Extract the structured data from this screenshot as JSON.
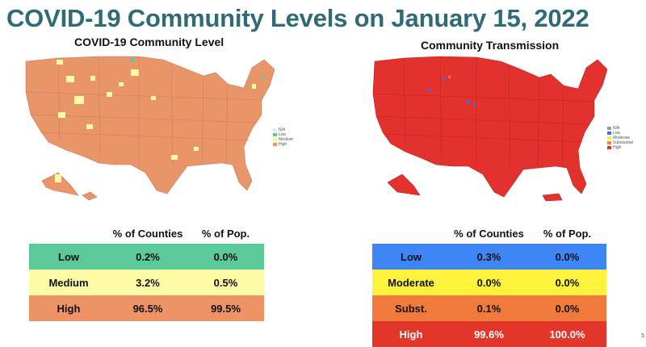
{
  "title": "COVID-19 Community Levels on January 15, 2022",
  "left_panel": {
    "subtitle": "COVID-19 Community Level",
    "legend": [
      {
        "label": "N/A",
        "color": "#e8e8e8"
      },
      {
        "label": "Low",
        "color": "#5cc893"
      },
      {
        "label": "Medium",
        "color": "#f5f59a"
      },
      {
        "label": "High",
        "color": "#e8956a"
      }
    ],
    "table": {
      "headers": [
        "",
        "% of Counties",
        "% of Pop."
      ],
      "rows": [
        {
          "level": "Low",
          "counties": "0.2%",
          "pop": "0.0%",
          "color": "#5cc99a"
        },
        {
          "level": "Medium",
          "counties": "3.2%",
          "pop": "0.5%",
          "color": "#fdfba6"
        },
        {
          "level": "High",
          "counties": "96.5%",
          "pop": "99.5%",
          "color": "#ec9466"
        }
      ]
    }
  },
  "right_panel": {
    "subtitle": "Community Transmission",
    "legend": [
      {
        "label": "N/A",
        "color": "#9a9a9a"
      },
      {
        "label": "Low",
        "color": "#3a6fe8"
      },
      {
        "label": "Moderate",
        "color": "#ffee33"
      },
      {
        "label": "Substantial",
        "color": "#f08a3c"
      },
      {
        "label": "High",
        "color": "#e3322d"
      }
    ],
    "table": {
      "headers": [
        "",
        "% of Counties",
        "% of Pop."
      ],
      "rows": [
        {
          "level": "Low",
          "counties": "0.3%",
          "pop": "0.0%",
          "color": "#3f86f5"
        },
        {
          "level": "Moderate",
          "counties": "0.0%",
          "pop": "0.0%",
          "color": "#fff23f"
        },
        {
          "level": "Subst.",
          "counties": "0.1%",
          "pop": "0.0%",
          "color": "#ef7a3b"
        },
        {
          "level": "High",
          "counties": "99.6%",
          "pop": "100.0%",
          "color": "#e3362b",
          "text_color": "#ffffff"
        }
      ]
    }
  },
  "page_number": "5"
}
